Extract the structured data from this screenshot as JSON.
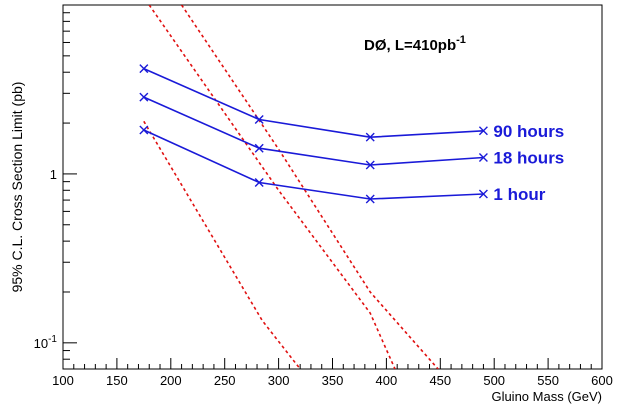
{
  "chart_data": {
    "type": "line",
    "annotation": {
      "prefix": "DØ, L=410pb",
      "sup": "-1"
    },
    "xlabel": "Gluino Mass (GeV)",
    "ylabel": "95% C.L. Cross Section Limit (pb)",
    "xlim": [
      100,
      600
    ],
    "ylim": [
      0.07,
      10
    ],
    "yscale": "log",
    "xticks": [
      100,
      150,
      200,
      250,
      300,
      350,
      400,
      450,
      500,
      550,
      600
    ],
    "xtick_labels": [
      "100",
      "150",
      "200",
      "250",
      "300",
      "350",
      "400",
      "450",
      "500",
      "550",
      "600"
    ],
    "yticks_labeled": [
      {
        "value": 1,
        "base": "1",
        "exp": ""
      },
      {
        "value": 0.1,
        "base": "10",
        "exp": "-1"
      }
    ],
    "series": [
      {
        "name": "90 hours",
        "color": "#1a1ad8",
        "x": [
          175,
          282,
          385,
          490
        ],
        "y": [
          4.2,
          2.1,
          1.65,
          1.8
        ]
      },
      {
        "name": "18 hours",
        "color": "#1a1ad8",
        "x": [
          175,
          282,
          385,
          490
        ],
        "y": [
          2.85,
          1.42,
          1.13,
          1.25
        ]
      },
      {
        "name": "1 hour",
        "color": "#1a1ad8",
        "x": [
          175,
          282,
          385,
          490
        ],
        "y": [
          1.82,
          0.89,
          0.71,
          0.76
        ]
      }
    ],
    "theory_curves": [
      {
        "color": "#e01010",
        "style": "dashed",
        "x": [
          175,
          285,
          320
        ],
        "y": [
          2.05,
          0.135,
          0.07
        ]
      },
      {
        "color": "#e01010",
        "style": "dashed",
        "x": [
          180,
          300,
          385,
          408
        ],
        "y": [
          10,
          0.8,
          0.15,
          0.07
        ]
      },
      {
        "color": "#e01010",
        "style": "dashed",
        "x": [
          210,
          300,
          385,
          448
        ],
        "y": [
          10,
          1.4,
          0.2,
          0.07
        ]
      }
    ],
    "grid": false,
    "legend": "none"
  }
}
